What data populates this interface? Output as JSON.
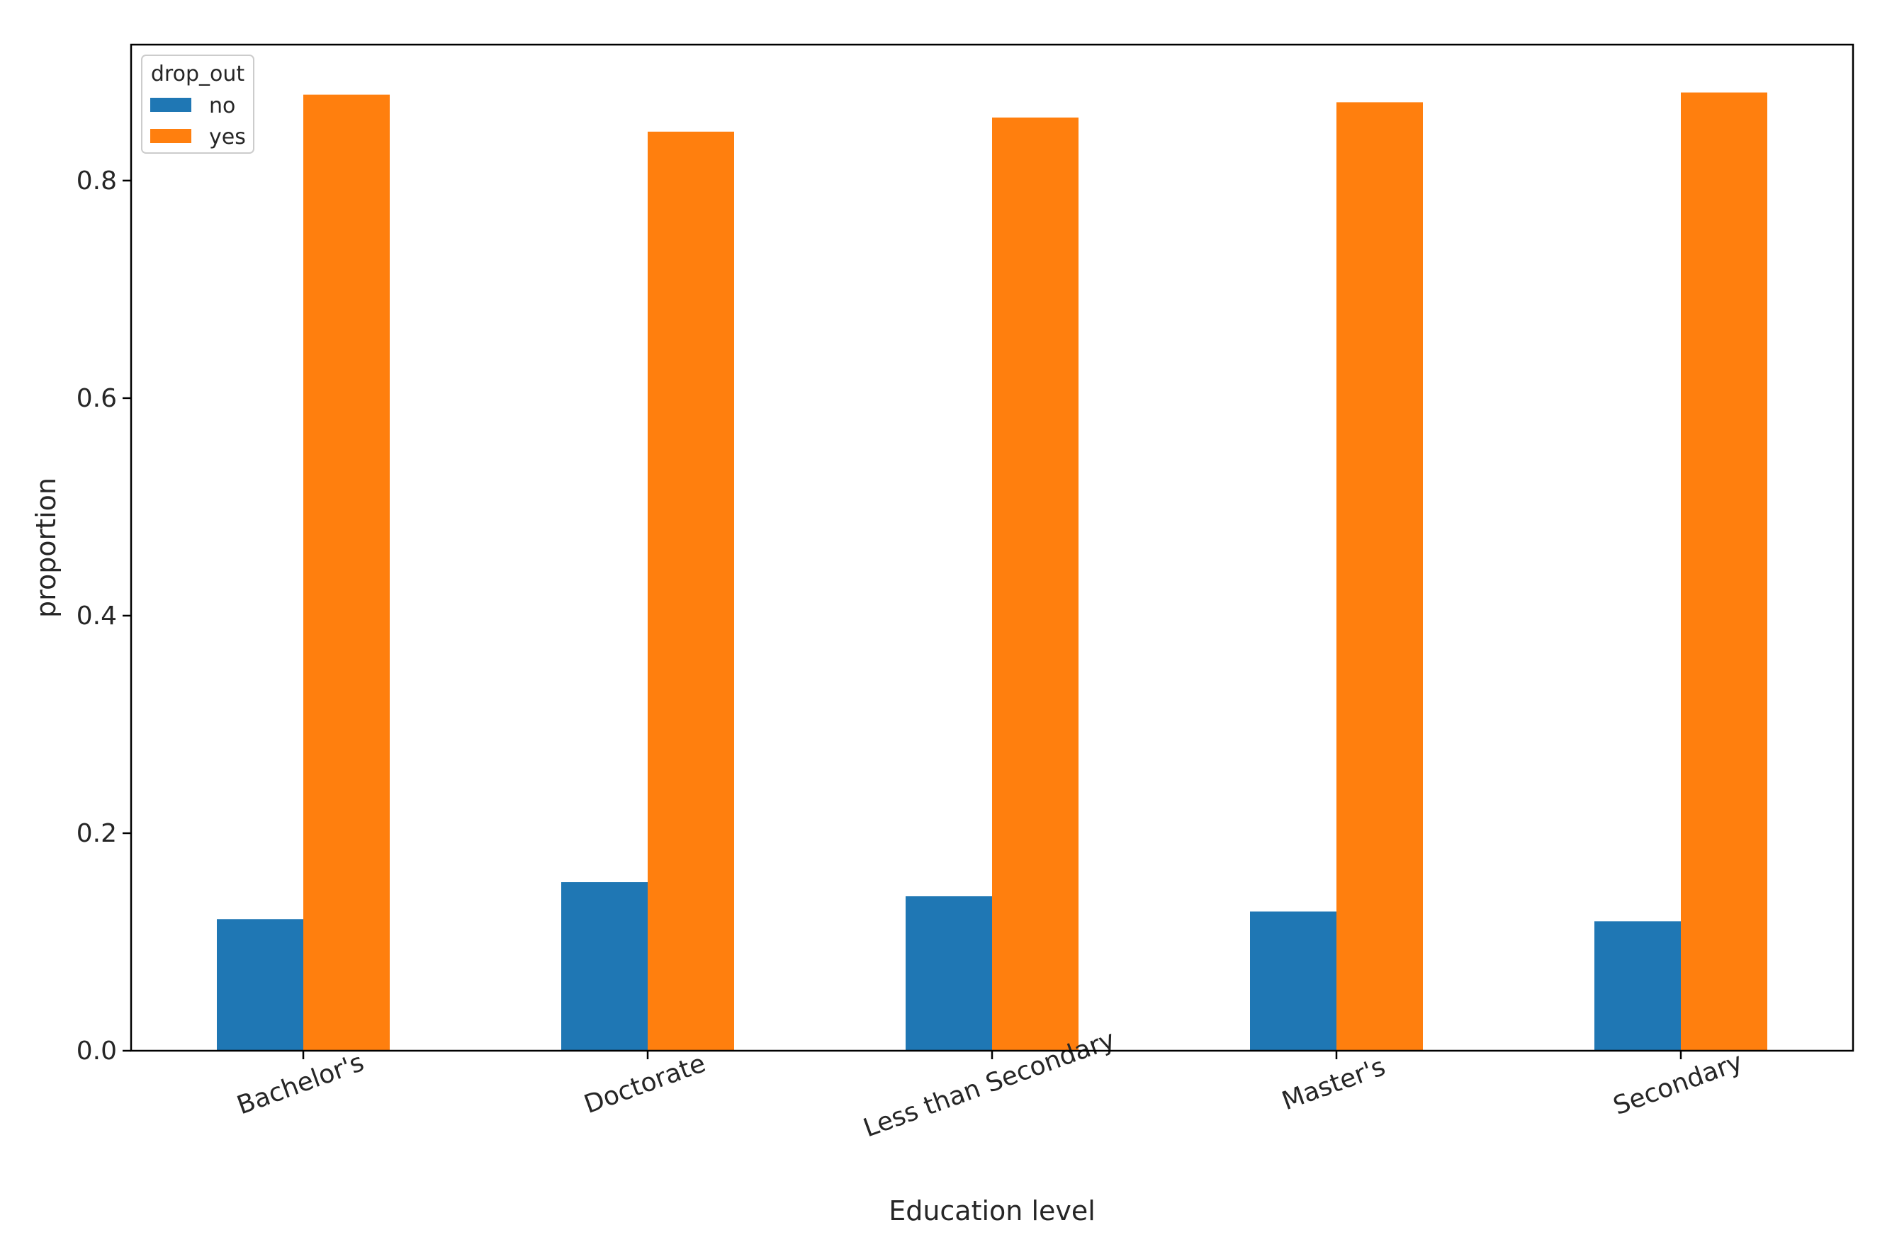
{
  "chart_data": {
    "type": "bar",
    "title": "",
    "xlabel": "Education level",
    "ylabel": "proportion",
    "categories": [
      "Bachelor's",
      "Doctorate",
      "Less than Secondary",
      "Master's",
      "Secondary"
    ],
    "series": [
      {
        "name": "no",
        "color": "#1f77b4",
        "values": [
          0.121,
          0.155,
          0.142,
          0.128,
          0.119
        ]
      },
      {
        "name": "yes",
        "color": "#ff7f0e",
        "values": [
          0.879,
          0.845,
          0.858,
          0.872,
          0.881
        ]
      }
    ],
    "ylim": [
      0,
      0.925
    ],
    "yticks": [
      0.0,
      0.2,
      0.4,
      0.6,
      0.8
    ],
    "ytick_labels": [
      "0.0",
      "0.2",
      "0.4",
      "0.6",
      "0.8"
    ],
    "legend": {
      "title": "drop_out",
      "placement": "top-left"
    },
    "grid": false
  }
}
